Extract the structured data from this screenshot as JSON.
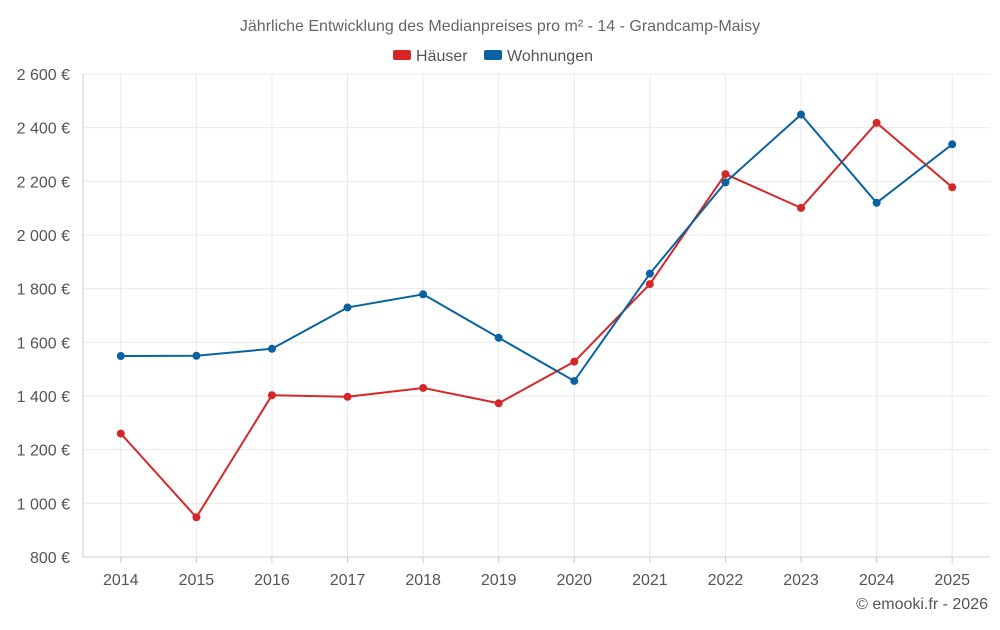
{
  "chart_data": {
    "type": "line",
    "title": "Jährliche Entwicklung des Medianpreises pro m² - 14 - Grandcamp-Maisy",
    "categories": [
      "2014",
      "2015",
      "2016",
      "2017",
      "2018",
      "2019",
      "2020",
      "2021",
      "2022",
      "2023",
      "2024",
      "2025"
    ],
    "series": [
      {
        "name": "Häuser",
        "color": "#d62728",
        "values": [
          1260,
          948,
          1403,
          1397,
          1430,
          1373,
          1528,
          1817,
          2227,
          2101,
          2418,
          2178
        ]
      },
      {
        "name": "Wohnungen",
        "color": "#0a63a0",
        "values": [
          1549,
          1550,
          1576,
          1730,
          1779,
          1617,
          1456,
          1856,
          2196,
          2449,
          2120,
          2338
        ]
      }
    ],
    "ylim": [
      800,
      2600
    ],
    "yticks": [
      800,
      1000,
      1200,
      1400,
      1600,
      1800,
      2000,
      2200,
      2400,
      2600
    ],
    "ytick_labels": [
      "800 €",
      "1 000 €",
      "1 200 €",
      "1 400 €",
      "1 600 €",
      "1 800 €",
      "2 000 €",
      "2 200 €",
      "2 400 €",
      "2 600 €"
    ],
    "xlabel": "",
    "ylabel": "",
    "grid": true,
    "legend_position": "top-center"
  },
  "credit": "© emooki.fr - 2026"
}
